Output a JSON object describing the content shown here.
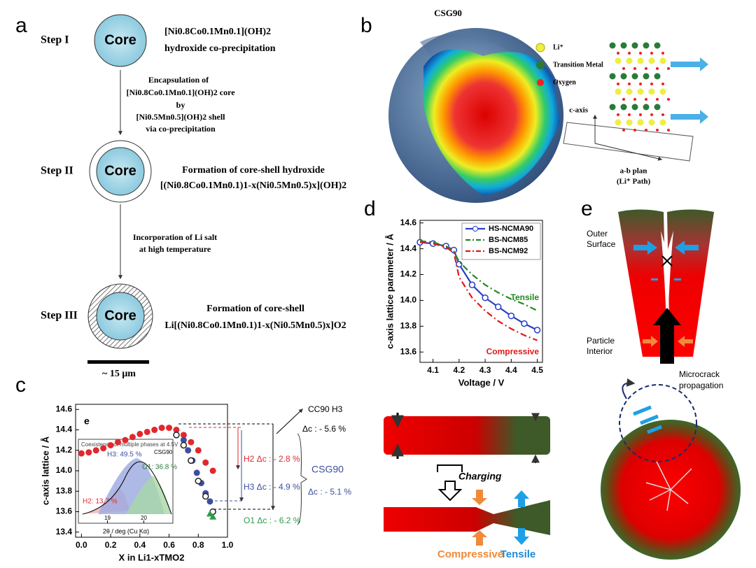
{
  "panel_labels": [
    "a",
    "b",
    "c",
    "d",
    "e"
  ],
  "panel_a": {
    "steps": [
      {
        "label": "Step I",
        "core": "Core",
        "lines": [
          "[Ni0.8Co0.1Mn0.1](OH)2",
          "hydroxide co-precipitation"
        ]
      },
      {
        "label": "Step II",
        "core": "Core",
        "lines": [
          "Formation of core-shell hydroxide",
          "[(Ni0.8Co0.1Mn0.1)1-x(Ni0.5Mn0.5)x](OH)2"
        ]
      },
      {
        "label": "Step III",
        "core": "Core",
        "lines": [
          "Formation of core-shell",
          "Li[(Ni0.8Co0.1Mn0.1)1-x(Ni0.5Mn0.5)x]O2"
        ]
      }
    ],
    "transitions": [
      [
        "Encapsulation of",
        "[Ni0.8Co0.1Mn0.1](OH)2 core",
        "by",
        "[Ni0.5Mn0.5](OH)2 shell",
        "via co-precipitation"
      ],
      [
        "Incorporation of Li salt",
        "at high temperature"
      ]
    ],
    "scale": "~ 15 μm"
  },
  "panel_b": {
    "title": "CSG90",
    "legend": [
      "Li⁺",
      "Transition Metal",
      "Oxygen"
    ],
    "axis": "c-axis",
    "plane": [
      "a-b plan",
      "(Li⁺ Path)"
    ]
  },
  "chart_data": [
    {
      "type": "scatter",
      "x_label": "X in Li1-xTMO2",
      "y_label": "c-axis lattice / Å",
      "xlim": [
        -0.04,
        1.0
      ],
      "xticks": [
        {
          "value": 0,
          "label": "0.0"
        },
        0.2,
        0.4,
        0.6,
        0.8,
        {
          "value": 1,
          "label": "1.0"
        }
      ],
      "ylim": [
        13.35,
        14.65
      ],
      "yticks": [
        13.4,
        13.6,
        13.8,
        {
          "value": 14,
          "label": "14.0"
        },
        14.2,
        14.4,
        14.6
      ],
      "series": [
        {
          "color": "#e0282e",
          "marker": "circle",
          "x": [
            0,
            0.05,
            0.1,
            0.15,
            0.2,
            0.25,
            0.3,
            0.35,
            0.4,
            0.45,
            0.5,
            0.55,
            0.6,
            0.65,
            0.7,
            0.75,
            0.8,
            0.85,
            0.9
          ],
          "values": [
            14.17,
            14.18,
            14.2,
            14.22,
            14.25,
            14.28,
            14.3,
            14.33,
            14.36,
            14.38,
            14.4,
            14.42,
            14.42,
            14.4,
            14.35,
            14.28,
            14.2,
            14.08,
            14.0
          ]
        },
        {
          "color": "#3c4ea0",
          "marker": "circle",
          "x": [
            0.7,
            0.73,
            0.76,
            0.79,
            0.82,
            0.85,
            0.88
          ],
          "values": [
            14.3,
            14.2,
            14.1,
            13.98,
            13.88,
            13.78,
            13.7
          ]
        },
        {
          "color": "#222222",
          "marker": "open-circle",
          "x": [
            0.65,
            0.7,
            0.75,
            0.8,
            0.85,
            0.9
          ],
          "values": [
            14.35,
            14.25,
            14.1,
            13.9,
            13.75,
            13.6
          ]
        },
        {
          "color": "#2e9a4a",
          "marker": "triangle",
          "x": [
            0.88,
            0.9
          ],
          "values": [
            13.58,
            13.55
          ]
        }
      ],
      "annotations": {
        "inset_letter": "e",
        "cc90": "CC90 H3",
        "cc90_dc": "Δc : - 5.6 %",
        "h2": "H2 Δc : - 2.8 %",
        "h3": "H3 Δc : - 4.9 %",
        "csg90": "CSG90",
        "csg90_dc": "Δc : - 5.1 %",
        "o1": "O1 Δc : - 6.2 %"
      },
      "inset": {
        "title": "Coexistence of multiple phases at 4.5V",
        "sample": "CSG90",
        "h3": "H3: 49.5 %",
        "o1": "O1: 36.8 %",
        "h2": "H2: 13.7 %",
        "x_label": "2θ / deg  (Cu Kα)",
        "xlim": [
          18.2,
          20.8
        ],
        "xticks": [
          19,
          20
        ]
      }
    },
    {
      "type": "line",
      "x_label": "Voltage / V",
      "y_label": "c-axis lattice parameter / Å",
      "xlim": [
        4.05,
        4.52
      ],
      "xticks": [
        4.1,
        4.2,
        4.3,
        4.4,
        4.5
      ],
      "ylim": [
        13.52,
        14.62
      ],
      "yticks": [
        13.6,
        13.8,
        {
          "value": 14,
          "label": "14.0"
        },
        14.2,
        14.4,
        14.6
      ],
      "legend": "upper right",
      "series": [
        {
          "name": "HS-NCMA90",
          "color": "#2a3ec8",
          "dash": "solid",
          "marker": "open-circle",
          "x": [
            4.05,
            4.1,
            4.15,
            4.18,
            4.2,
            4.25,
            4.3,
            4.35,
            4.4,
            4.45,
            4.5
          ],
          "values": [
            14.45,
            14.44,
            14.42,
            14.39,
            14.28,
            14.12,
            14.02,
            13.95,
            13.88,
            13.82,
            13.77
          ]
        },
        {
          "name": "BS-NCM85",
          "color": "#1e8a1e",
          "dash": "dashdot",
          "marker": null,
          "x": [
            4.05,
            4.1,
            4.15,
            4.18,
            4.2,
            4.25,
            4.3,
            4.35,
            4.4,
            4.45,
            4.5
          ],
          "values": [
            14.46,
            14.45,
            14.42,
            14.38,
            14.3,
            14.2,
            14.12,
            14.06,
            14.01,
            13.97,
            13.92
          ]
        },
        {
          "name": "BS-NCM92",
          "color": "#e01818",
          "dash": "dashdot",
          "marker": null,
          "x": [
            4.05,
            4.1,
            4.15,
            4.18,
            4.2,
            4.25,
            4.3,
            4.35,
            4.4,
            4.45,
            4.5
          ],
          "values": [
            14.45,
            14.44,
            14.41,
            14.37,
            14.18,
            14.02,
            13.92,
            13.84,
            13.78,
            13.73,
            13.69
          ]
        }
      ],
      "annotations": {
        "tensile": "Tensile",
        "compressive": "Compressive"
      }
    }
  ],
  "panel_d_diagram": {
    "process": "Charging",
    "compressive": "Compressive",
    "tensile": "Tensile"
  },
  "panel_e": {
    "outer": [
      "Outer",
      "Surface"
    ],
    "interior": [
      "Particle",
      "Interior"
    ],
    "crack": [
      "Microcrack",
      "propagation"
    ]
  }
}
